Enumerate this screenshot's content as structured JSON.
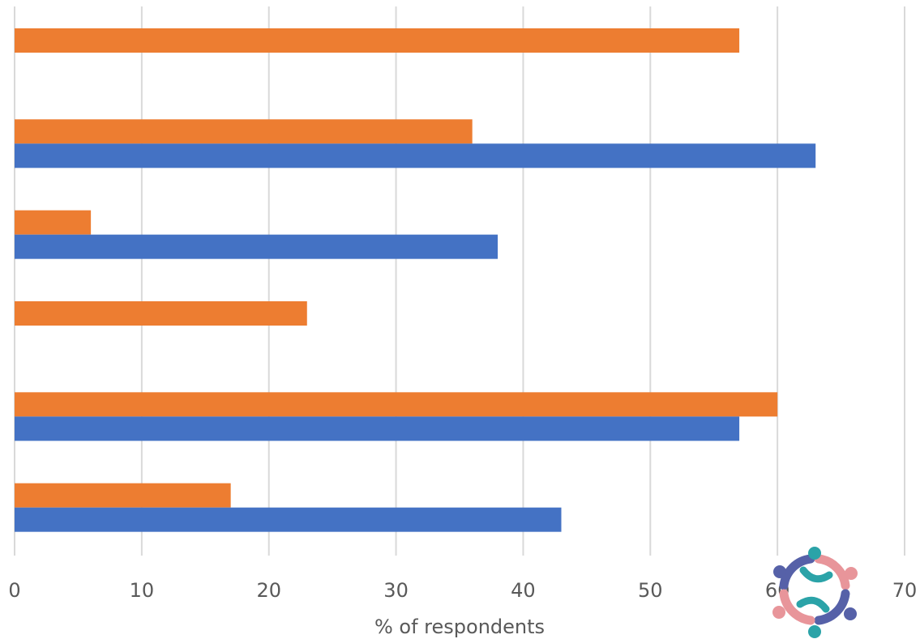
{
  "chart_data": {
    "type": "bar",
    "orientation": "horizontal",
    "xlabel": "% of respondents",
    "xlim": [
      0,
      70
    ],
    "xticks": [
      0,
      10,
      20,
      30,
      40,
      50,
      60,
      70
    ],
    "grid": "vertical",
    "series": [
      {
        "color": "#ED7D31",
        "values": [
          57,
          36,
          6,
          23,
          60,
          17
        ]
      },
      {
        "color": "#4472C4",
        "values": [
          null,
          63,
          38,
          null,
          57,
          43
        ]
      }
    ]
  },
  "logo": {
    "icon": "people-circle-logo-icon",
    "colors": [
      "#2BA3A8",
      "#E8959A",
      "#5661A8"
    ]
  }
}
